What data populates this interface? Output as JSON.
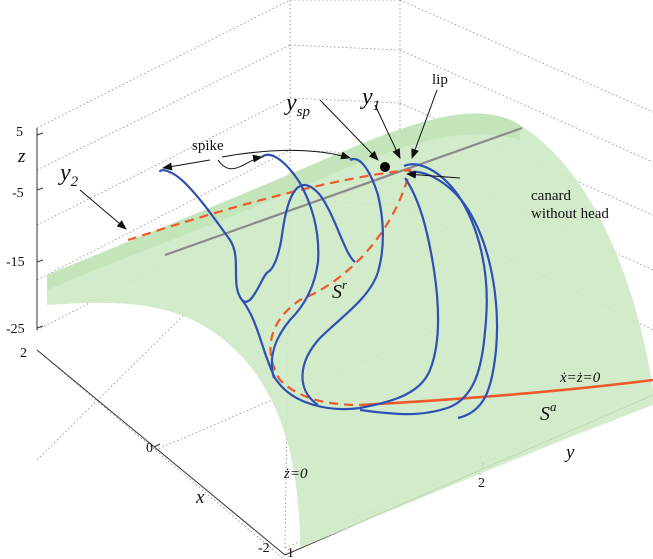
{
  "axes": {
    "z_label": "z",
    "x_label": "x",
    "y_label": "y",
    "z_ticks": [
      "5",
      "-5",
      "-15",
      "-25"
    ],
    "x_ticks": [
      "2",
      "0",
      "-2"
    ],
    "y_ticks": [
      "1",
      "2"
    ]
  },
  "labels": {
    "spike": "spike",
    "lip": "lip",
    "y_sp_base": "y",
    "y_sp_sub": "sp",
    "y1_base": "y",
    "y1_sub": "1",
    "y2_base": "y",
    "y2_sub": "2",
    "canard_line1": "canard",
    "canard_line2": "without head",
    "sr_base": "S",
    "sr_sup": "r",
    "sa_base": "S",
    "sa_sup": "a",
    "xz_zero": "ẋ=ż=0",
    "z_zero": "ż=0"
  },
  "colors": {
    "surface": "#cde9c4",
    "orbit": "#2f4fb5",
    "critical_manifold": "#ef5a2c",
    "fold_line": "#888888"
  }
}
